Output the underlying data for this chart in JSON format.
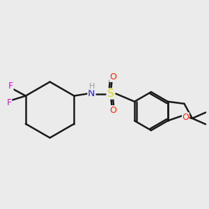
{
  "background_color": "#ebebeb",
  "bond_color": "#1a1a1a",
  "bond_width": 1.8,
  "atom_colors": {
    "F": "#ee00ee",
    "N": "#2222ff",
    "H": "#999999",
    "S": "#dddd00",
    "O": "#ff2200",
    "C": "#1a1a1a"
  },
  "font_size_atom": 9,
  "fig_width": 3.0,
  "fig_height": 3.0,
  "dpi": 100
}
